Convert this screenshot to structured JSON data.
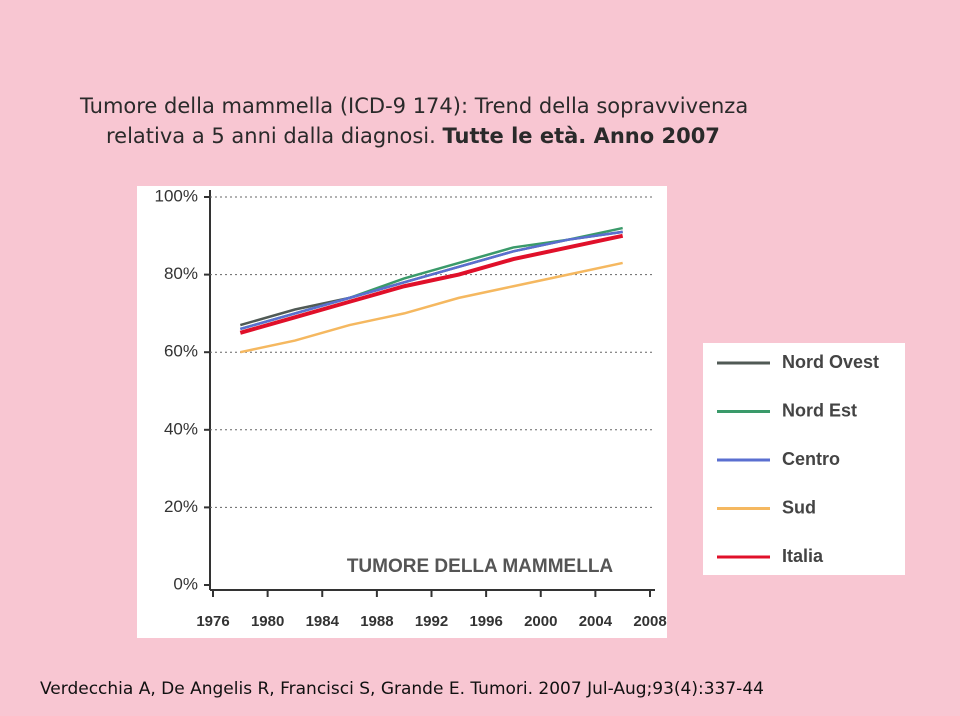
{
  "slide_title": {
    "line1": "Tumore della mammella (ICD-9 174): Trend della sopravvivenza",
    "line2": "relativa a 5 anni dalla diagnosi.",
    "line2_bold": "Tutte le età. Anno 2007"
  },
  "chart_data": {
    "type": "line",
    "annotation": "TUMORE DELLA MAMMELLA",
    "x": [
      1978,
      1982,
      1986,
      1990,
      1994,
      1998,
      2002,
      2006
    ],
    "xlim": [
      1976,
      2008
    ],
    "xticks": [
      1976,
      1980,
      1984,
      1988,
      1992,
      1996,
      2000,
      2004,
      2008
    ],
    "ylim": [
      0,
      100
    ],
    "yticks": [
      {
        "value": 0,
        "label": "0%"
      },
      {
        "value": 20,
        "label": "20%"
      },
      {
        "value": 40,
        "label": "40%"
      },
      {
        "value": 60,
        "label": "60%"
      },
      {
        "value": 80,
        "label": "80%"
      },
      {
        "value": 100,
        "label": "100%"
      }
    ],
    "grid": true,
    "legend": "right",
    "series": [
      {
        "name": "Nord Ovest",
        "color": "#505a55",
        "values": [
          67,
          71,
          74,
          78,
          82,
          86,
          89,
          91
        ]
      },
      {
        "name": "Nord Est",
        "color": "#3a9a6a",
        "values": [
          66,
          70,
          74,
          79,
          83,
          87,
          89,
          92
        ]
      },
      {
        "name": "Centro",
        "color": "#5a6fd0",
        "values": [
          66,
          70,
          74,
          78,
          82,
          86,
          89,
          91
        ]
      },
      {
        "name": "Sud",
        "color": "#f5b860",
        "values": [
          60,
          63,
          67,
          70,
          74,
          77,
          80,
          83
        ]
      },
      {
        "name": "Italia",
        "color": "#e0102a",
        "values": [
          65,
          69,
          73,
          77,
          80,
          84,
          87,
          90
        ]
      }
    ]
  },
  "citation": "Verdecchia A, De Angelis R, Francisci S, Grande E. Tumori. 2007 Jul-Aug;93(4):337-44"
}
